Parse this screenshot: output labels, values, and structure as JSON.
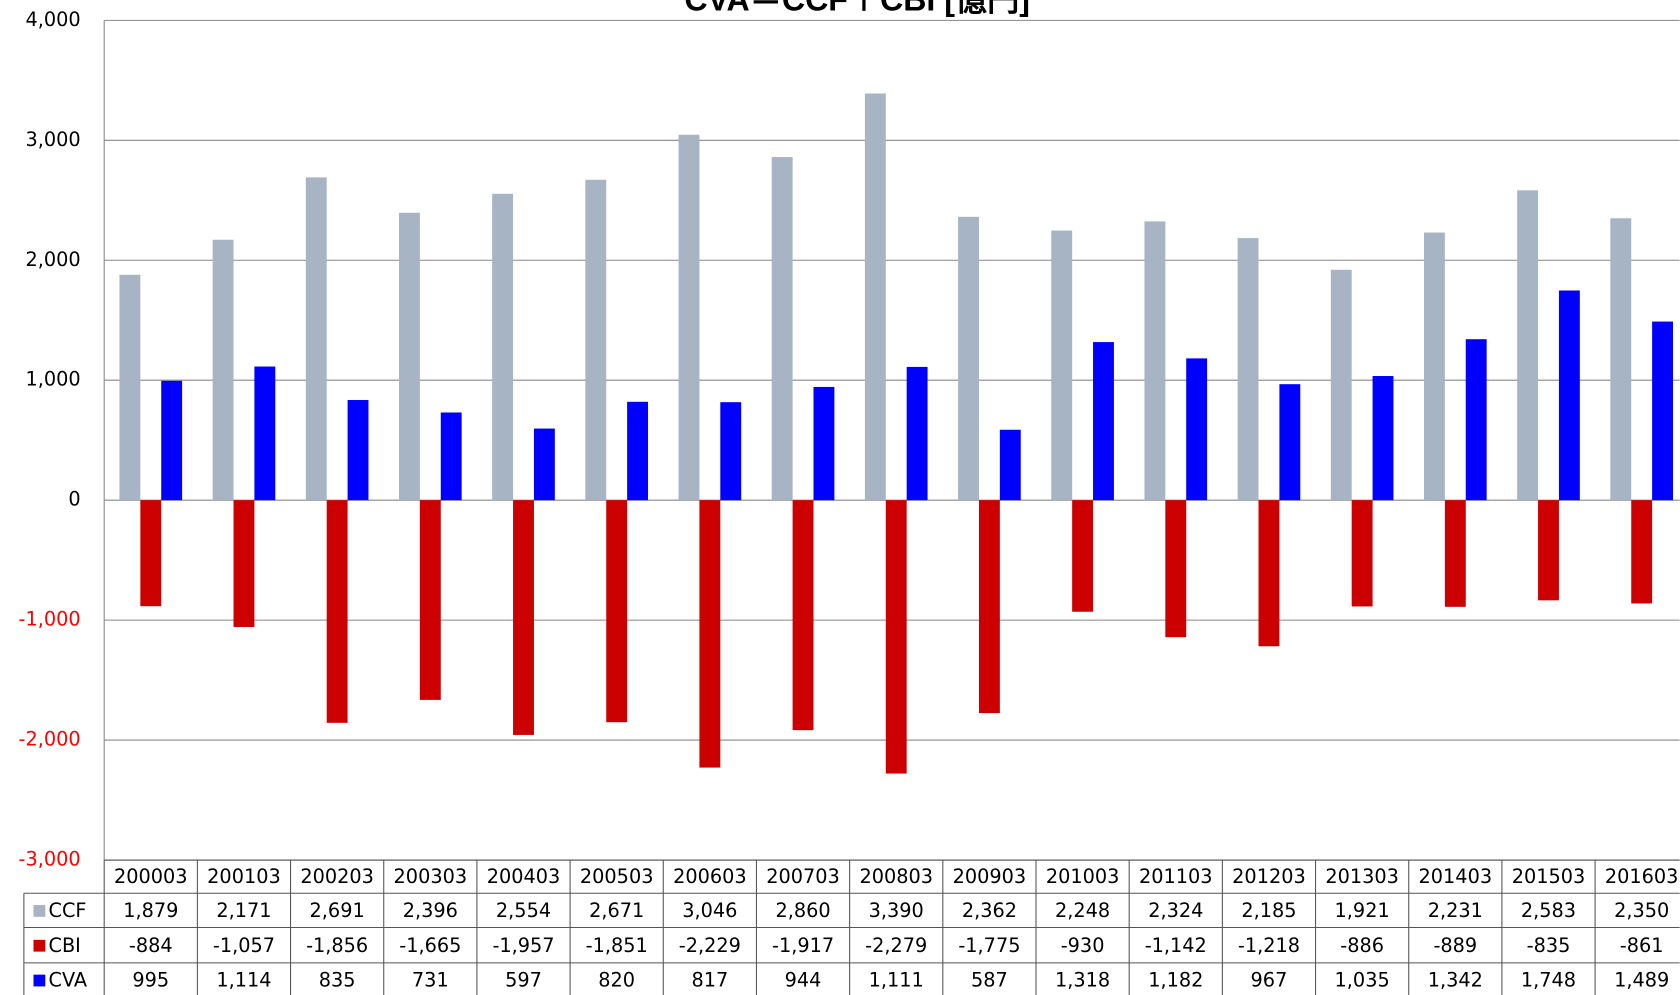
{
  "chart_data": {
    "type": "bar",
    "title": "CVA＝CCF＋CBI [億円]",
    "categories": [
      "200003",
      "200103",
      "200203",
      "200303",
      "200403",
      "200503",
      "200603",
      "200703",
      "200803",
      "200903",
      "201003",
      "201103",
      "201203",
      "201303",
      "201403",
      "201503",
      "201603"
    ],
    "series": [
      {
        "name": "CCF",
        "color": "#a6b4c4",
        "values": [
          1879,
          2171,
          2691,
          2396,
          2554,
          2671,
          3046,
          2860,
          3390,
          2362,
          2248,
          2324,
          2185,
          1921,
          2231,
          2583,
          2350
        ],
        "value_labels": [
          "1,879",
          "2,171",
          "2,691",
          "2,396",
          "2,554",
          "2,671",
          "3,046",
          "2,860",
          "3,390",
          "2,362",
          "2,248",
          "2,324",
          "2,185",
          "1,921",
          "2,231",
          "2,583",
          "2,350"
        ]
      },
      {
        "name": "CBI",
        "color": "#cc0000",
        "values": [
          -884,
          -1057,
          -1856,
          -1665,
          -1957,
          -1851,
          -2229,
          -1917,
          -2279,
          -1775,
          -930,
          -1142,
          -1218,
          -886,
          -889,
          -835,
          -861
        ],
        "value_labels": [
          "-884",
          "-1,057",
          "-1,856",
          "-1,665",
          "-1,957",
          "-1,851",
          "-2,229",
          "-1,917",
          "-2,279",
          "-1,775",
          "-930",
          "-1,142",
          "-1,218",
          "-886",
          "-889",
          "-835",
          "-861"
        ]
      },
      {
        "name": "CVA",
        "color": "#0000ff",
        "values": [
          995,
          1114,
          835,
          731,
          597,
          820,
          817,
          944,
          1111,
          587,
          1318,
          1182,
          967,
          1035,
          1342,
          1748,
          1489
        ],
        "value_labels": [
          "995",
          "1,114",
          "835",
          "731",
          "597",
          "820",
          "817",
          "944",
          "1,111",
          "587",
          "1,318",
          "1,182",
          "967",
          "1,035",
          "1,342",
          "1,748",
          "1,489"
        ]
      }
    ],
    "ylim": [
      -3000,
      4000
    ],
    "yticks": [
      {
        "value": -3000,
        "label": "-3,000"
      },
      {
        "value": -2000,
        "label": "-2,000"
      },
      {
        "value": -1000,
        "label": "-1,000"
      },
      0,
      {
        "value": 1000,
        "label": "1,000"
      },
      {
        "value": 2000,
        "label": "2,000"
      },
      {
        "value": 3000,
        "label": "3,000"
      },
      {
        "value": 4000,
        "label": "4,000"
      }
    ],
    "grid": true,
    "negative_tick_color": "#ff0000"
  }
}
